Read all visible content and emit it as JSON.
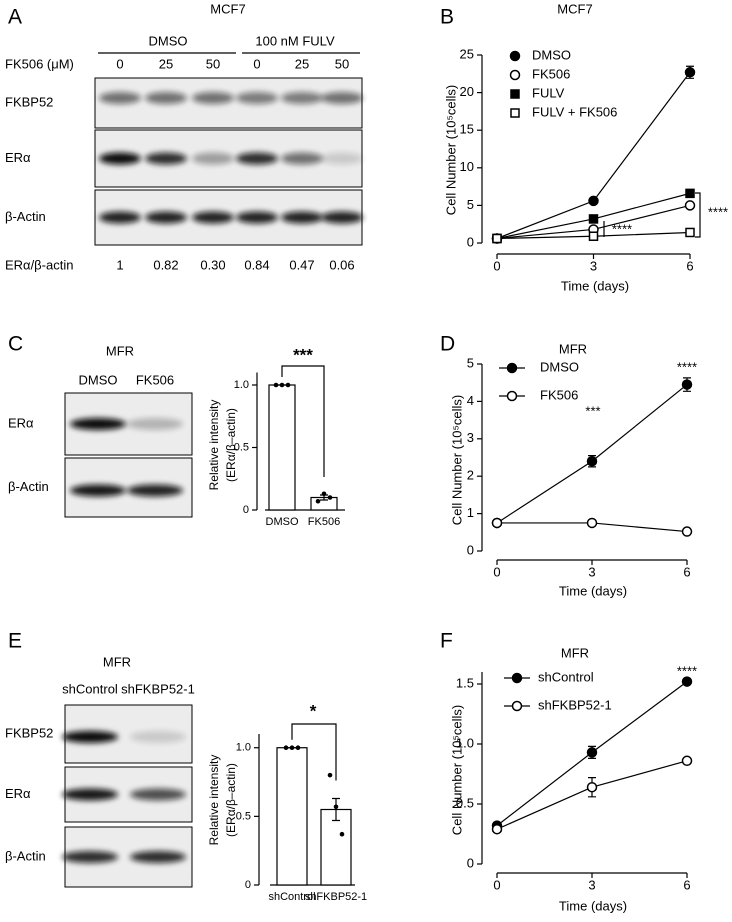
{
  "panel_labels": [
    "A",
    "B",
    "C",
    "D",
    "E",
    "F"
  ],
  "blots": [
    {
      "title": "MCF7",
      "groups": [
        "DMSO",
        "100 nM FULV"
      ],
      "dose_label": "FK506 (μM)",
      "lanes": [
        "0",
        "25",
        "50",
        "0",
        "25",
        "50"
      ],
      "rows": [
        "FKBP52",
        "ERα",
        "β-Actin"
      ],
      "ratio_label": "ERα/β-actin",
      "ratios": [
        "1",
        "0.82",
        "0.30",
        "0.84",
        "0.47",
        "0.06"
      ]
    },
    {
      "title": "MFR",
      "lanes": [
        "DMSO",
        "FK506"
      ],
      "rows": [
        "ERα",
        "β-Actin"
      ]
    },
    {
      "title": "MFR",
      "lanes": [
        "shControl",
        "shFKBP52-1"
      ],
      "rows": [
        "FKBP52",
        "ERα",
        "β-Actin"
      ]
    }
  ],
  "chart_data": [
    {
      "type": "line",
      "title": "MCF7",
      "xlabel": "Time (days)",
      "ylabel": "Cell Number (10⁵cells)",
      "x": [
        0,
        3,
        6
      ],
      "xlim": [
        0,
        6
      ],
      "xticks": [
        0,
        3,
        6
      ],
      "ylim": [
        0,
        25
      ],
      "yticks": [
        0,
        5,
        10,
        15,
        20,
        25
      ],
      "series": [
        {
          "name": "DMSO",
          "color": "#000000",
          "marker": "circle",
          "marker_fill": "filled",
          "values": [
            0.6,
            5.6,
            22.7
          ],
          "errors": [
            null,
            null,
            0.8
          ]
        },
        {
          "name": "FK506",
          "color": "#000000",
          "marker": "circle",
          "marker_fill": "open",
          "values": [
            0.6,
            1.8,
            5.0
          ],
          "errors": [
            null,
            null,
            null
          ]
        },
        {
          "name": "FULV",
          "color": "#000000",
          "marker": "square",
          "marker_fill": "filled",
          "values": [
            0.6,
            3.2,
            6.6
          ],
          "errors": [
            null,
            null,
            null
          ]
        },
        {
          "name": "FULV + FK506",
          "color": "#000000",
          "marker": "square",
          "marker_fill": "open",
          "values": [
            0.6,
            0.9,
            1.4
          ],
          "errors": [
            null,
            null,
            null
          ]
        }
      ],
      "annotations": [
        "****",
        "****"
      ]
    },
    {
      "type": "bar",
      "ylabel": [
        "Relative intensity",
        "(ERα/β–actin)"
      ],
      "categories": [
        "DMSO",
        "FK506"
      ],
      "values": [
        1,
        0.1
      ],
      "errors": [
        0,
        0.02
      ],
      "points": [
        [
          1,
          1,
          1
        ],
        [
          0.07,
          0.13,
          0.1
        ]
      ],
      "color": "#ffffff",
      "ylim": [
        0,
        1.1
      ],
      "yticks": [
        0,
        0.5,
        {
          "value": 1,
          "label": "1.0"
        }
      ],
      "annotations": [
        "***"
      ]
    },
    {
      "type": "line",
      "title": "MFR",
      "xlabel": "Time (days)",
      "ylabel": "Cell Number (10⁵cells)",
      "x": [
        0,
        3,
        6
      ],
      "xlim": [
        0,
        6
      ],
      "xticks": [
        0,
        3,
        6
      ],
      "ylim": [
        0,
        5
      ],
      "yticks": [
        0,
        1,
        2,
        3,
        4,
        5
      ],
      "series": [
        {
          "name": "DMSO",
          "color": "#000000",
          "marker": "circle",
          "marker_fill": "filled",
          "values": [
            0.75,
            2.4,
            4.45
          ],
          "errors": [
            null,
            0.15,
            0.18
          ]
        },
        {
          "name": "FK506",
          "color": "#000000",
          "marker": "circle",
          "marker_fill": "open",
          "values": [
            0.75,
            0.75,
            0.52
          ],
          "errors": [
            null,
            null,
            null
          ]
        }
      ],
      "annotations": [
        "***",
        "****"
      ]
    },
    {
      "type": "bar",
      "ylabel": [
        "Relative intensity",
        "(ERα/β–actin)"
      ],
      "categories": [
        "shControl",
        "shFKBP52-1"
      ],
      "values": [
        1,
        0.55
      ],
      "errors": [
        0,
        0.08
      ],
      "points": [
        [
          1,
          1,
          1
        ],
        [
          0.8,
          0.57,
          0.37
        ]
      ],
      "color": "#ffffff",
      "ylim": [
        0,
        1.1
      ],
      "yticks": [
        0,
        0.5,
        {
          "value": 1,
          "label": "1.0"
        }
      ],
      "annotations": [
        "*"
      ]
    },
    {
      "type": "line",
      "title": "MFR",
      "xlabel": "Time (days)",
      "ylabel": "Cell Number (10⁵cells)",
      "x": [
        0,
        3,
        6
      ],
      "xlim": [
        0,
        6
      ],
      "xticks": [
        0,
        3,
        6
      ],
      "ylim": [
        0,
        1.6
      ],
      "yticks": [
        0,
        0.5,
        {
          "value": 1,
          "label": "1.0"
        },
        1.5
      ],
      "series": [
        {
          "name": "shControl",
          "color": "#000000",
          "marker": "circle",
          "marker_fill": "filled",
          "values": [
            0.32,
            0.93,
            1.52
          ],
          "errors": [
            null,
            0.05,
            null
          ]
        },
        {
          "name": "shFKBP52-1",
          "color": "#000000",
          "marker": "circle",
          "marker_fill": "open",
          "values": [
            0.29,
            0.64,
            0.86
          ],
          "errors": [
            null,
            0.08,
            null
          ]
        }
      ],
      "annotations": [
        "****"
      ]
    }
  ]
}
